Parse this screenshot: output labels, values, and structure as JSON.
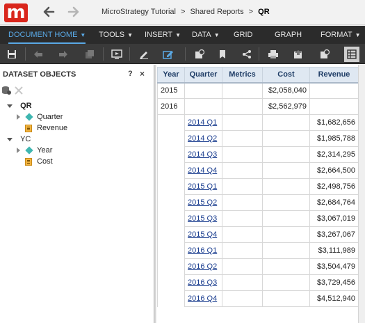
{
  "app": {
    "logo_letter": "m",
    "brand_color": "#d9261c"
  },
  "breadcrumb": {
    "items": [
      "MicroStrategy Tutorial",
      "Shared Reports"
    ],
    "separator": ">",
    "current": "QR"
  },
  "menu": {
    "items": [
      {
        "label": "DOCUMENT HOME",
        "dropdown": true,
        "active": true
      },
      {
        "label": "TOOLS",
        "dropdown": true
      },
      {
        "label": "INSERT",
        "dropdown": true
      },
      {
        "label": "DATA",
        "dropdown": true
      },
      {
        "label": "GRID",
        "dropdown": false
      },
      {
        "label": "GRAPH",
        "dropdown": false
      },
      {
        "label": "FORMAT",
        "dropdown": true
      }
    ],
    "accent_color": "#5aa9e6"
  },
  "toolbar": {
    "icons": [
      "save-icon",
      "undo-icon",
      "redo-icon",
      "redo-all-icon",
      "presentation-mode-icon",
      "edit-icon",
      "design-mode-icon",
      "refresh-data-icon",
      "bookmark-icon",
      "share-icon",
      "print-icon",
      "export-icon",
      "export-pdf-icon",
      "grid-view-icon"
    ]
  },
  "dataset_panel": {
    "title": "DATASET OBJECTS",
    "help_label": "?",
    "close_label": "×",
    "datasets": [
      {
        "name": "QR",
        "bold": true,
        "children": [
          {
            "type": "attribute",
            "label": "Quarter"
          },
          {
            "type": "metric",
            "label": "Revenue"
          }
        ]
      },
      {
        "name": "YC",
        "bold": false,
        "children": [
          {
            "type": "attribute",
            "label": "Year"
          },
          {
            "type": "metric",
            "label": "Cost"
          }
        ]
      }
    ]
  },
  "grid": {
    "headers": [
      "Year",
      "Quarter",
      "Metrics",
      "Cost",
      "Revenue"
    ],
    "year_rows": [
      {
        "year": "2015",
        "cost": "$2,058,040"
      },
      {
        "year": "2016",
        "cost": "$2,562,979"
      }
    ],
    "quarter_rows": [
      {
        "quarter": "2014 Q1",
        "revenue": "$1,682,656"
      },
      {
        "quarter": "2014 Q2",
        "revenue": "$1,985,788"
      },
      {
        "quarter": "2014 Q3",
        "revenue": "$2,314,295"
      },
      {
        "quarter": "2014 Q4",
        "revenue": "$2,664,500"
      },
      {
        "quarter": "2015 Q1",
        "revenue": "$2,498,756"
      },
      {
        "quarter": "2015 Q2",
        "revenue": "$2,684,764"
      },
      {
        "quarter": "2015 Q3",
        "revenue": "$3,067,019"
      },
      {
        "quarter": "2015 Q4",
        "revenue": "$3,267,067"
      },
      {
        "quarter": "2016 Q1",
        "revenue": "$3,111,989"
      },
      {
        "quarter": "2016 Q2",
        "revenue": "$3,504,479"
      },
      {
        "quarter": "2016 Q3",
        "revenue": "$3,729,456"
      },
      {
        "quarter": "2016 Q4",
        "revenue": "$4,512,940"
      }
    ],
    "header_bg": "#dfe8f2",
    "header_text_color": "#1f3d66",
    "link_color": "#1a3d8f"
  }
}
